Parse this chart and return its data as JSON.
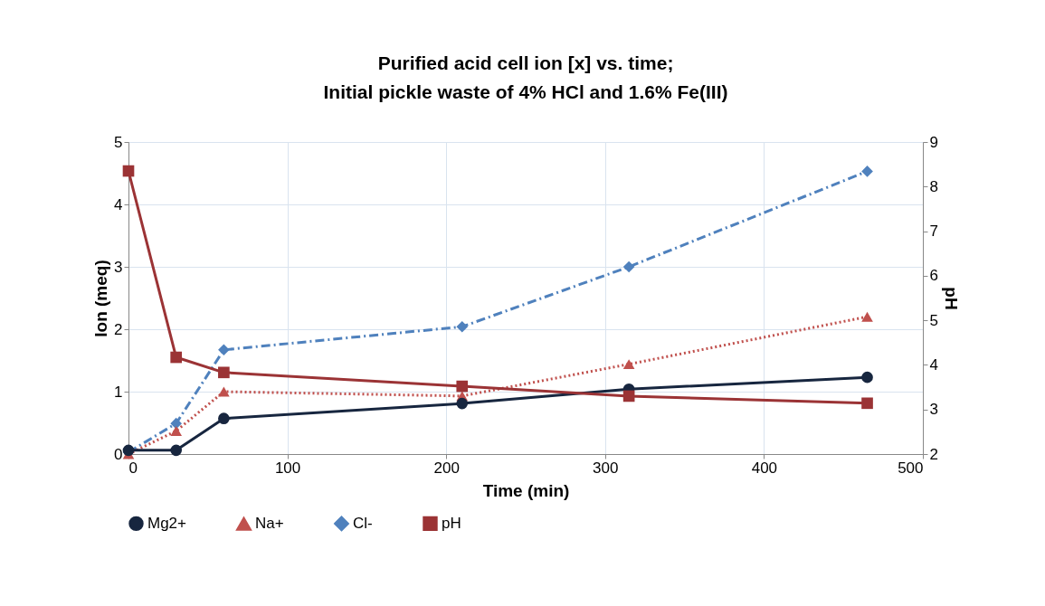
{
  "chart_data": {
    "type": "line",
    "title": "Purified acid cell ion [x] vs. time;\nInitial pickle waste of 4% HCl and 1.6% Fe(III)",
    "xlabel": "Time  (min)",
    "ylabel": "Ion (meq)",
    "y2label": "pH",
    "x": [
      0,
      30,
      60,
      210,
      315,
      465
    ],
    "series": [
      {
        "name": "Mg2+",
        "color": "#17263f",
        "marker": "circle",
        "line_style": "solid",
        "values": [
          0.06,
          0.06,
          0.57,
          0.81,
          1.04,
          1.23
        ]
      },
      {
        "name": "Na+",
        "color": "#c0504d",
        "marker": "triangle",
        "line_style": "dotted",
        "values": [
          0.0,
          0.37,
          1.0,
          0.93,
          1.44,
          2.2
        ]
      },
      {
        "name": "Cl-",
        "color": "#4f81bd",
        "marker": "diamond",
        "line_style": "dashed",
        "values": [
          0.03,
          0.49,
          1.67,
          2.04,
          3.0,
          4.53
        ]
      },
      {
        "name": "pH",
        "color": "#9b3335",
        "marker": "square",
        "line_style": "solid",
        "axis": "y2",
        "values": [
          8.35,
          4.17,
          3.83,
          3.52,
          3.3,
          3.14
        ]
      }
    ],
    "xlim": [
      0,
      500
    ],
    "xticks": [
      0,
      100,
      200,
      300,
      400,
      500
    ],
    "ylim": [
      0,
      5
    ],
    "yticks": [
      0,
      1,
      2,
      3,
      4,
      5
    ],
    "y2lim": [
      2,
      9
    ],
    "y2ticks": [
      2,
      3,
      4,
      5,
      6,
      7,
      8,
      9
    ],
    "grid": true,
    "legend": "bottom"
  }
}
